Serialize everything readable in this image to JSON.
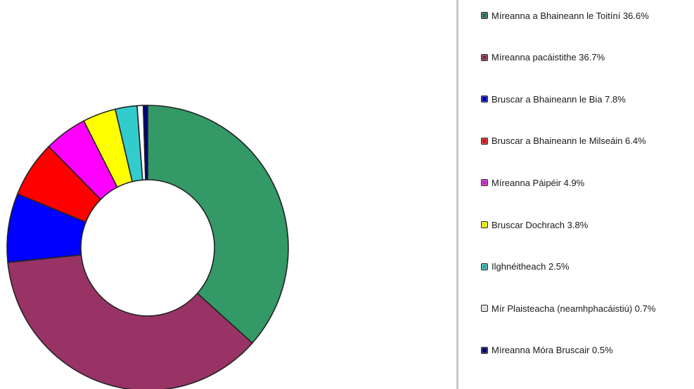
{
  "chart_data": {
    "type": "pie",
    "style": "donut",
    "title": "",
    "legend_position": "right",
    "categories": [
      "Míreanna a Bhaineann le Toitíní",
      "Míreanna pacáistithe",
      "Bruscar a Bhaineann le Bia",
      "Bruscar a Bhaineann le Milseáin",
      "Míreanna Páipéir",
      "Bruscar Dochrach",
      "Ilghnéitheach",
      "Mír Plaisteacha (neamhphacáistiú)",
      "Míreanna Móra Bruscair"
    ],
    "values": [
      36.6,
      36.7,
      7.8,
      6.4,
      4.9,
      3.8,
      2.5,
      0.7,
      0.5
    ],
    "unit": "%",
    "colors": [
      "#339966",
      "#993366",
      "#0000ff",
      "#ff0000",
      "#ff00ff",
      "#ffff00",
      "#33cccc",
      "#ffffff",
      "#000080"
    ],
    "legend_labels": [
      "Míreanna a Bhaineann le Toitíní 36.6%",
      "Míreanna pacáistithe 36.7%",
      "Bruscar a Bhaineann le Bia 7.8%",
      "Bruscar a Bhaineann le Milseáin 6.4%",
      "Míreanna Páipéir 4.9%",
      "Bruscar Dochrach 3.8%",
      "Ilghnéitheach 2.5%",
      "Mír Plaisteacha (neamhphacáistiú) 0.7%",
      "Míreanna Móra Bruscair 0.5%"
    ],
    "swatch_colors": [
      "#2e6b4f",
      "#7a2f4f",
      "#0000aa",
      "#cc1a1a",
      "#cc22cc",
      "#e6e600",
      "#33aaaa",
      "#dddddd",
      "#000060"
    ]
  }
}
